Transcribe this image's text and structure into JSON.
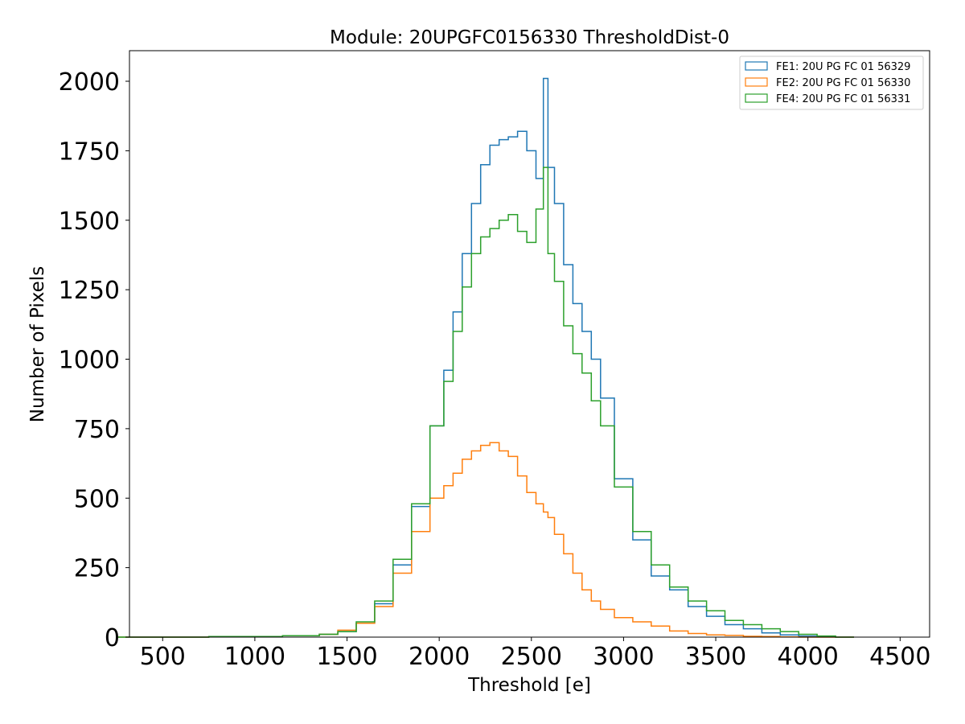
{
  "chart_data": {
    "type": "line",
    "title": "Module: 20UPGFC0156330 ThresholdDist-0",
    "xlabel": "Threshold [e]",
    "ylabel": "Number of Pixels",
    "xlim": [
      320,
      4660
    ],
    "ylim": [
      0,
      2110
    ],
    "x_ticks": [
      500,
      1000,
      1500,
      2000,
      2500,
      3000,
      3500,
      4000,
      4500
    ],
    "y_ticks": [
      0,
      250,
      500,
      750,
      1000,
      1250,
      1500,
      1750,
      2000
    ],
    "grid": false,
    "legend_position": "top-right",
    "x": [
      500,
      1000,
      1300,
      1400,
      1500,
      1600,
      1700,
      1800,
      1900,
      2000,
      2050,
      2100,
      2150,
      2200,
      2250,
      2300,
      2350,
      2400,
      2450,
      2500,
      2550,
      2580,
      2600,
      2650,
      2700,
      2750,
      2800,
      2850,
      2900,
      3000,
      3100,
      3200,
      3300,
      3400,
      3500,
      3600,
      3700,
      3800,
      3900,
      4000,
      4100,
      4200
    ],
    "series": [
      {
        "name": "FE1: 20U PG FC 01 56329",
        "color": "#1f77b4",
        "values": [
          0,
          2,
          5,
          10,
          20,
          50,
          120,
          260,
          470,
          760,
          960,
          1170,
          1380,
          1560,
          1700,
          1770,
          1790,
          1800,
          1820,
          1750,
          1650,
          2010,
          1690,
          1560,
          1340,
          1200,
          1100,
          1000,
          860,
          570,
          350,
          220,
          170,
          110,
          75,
          45,
          30,
          15,
          8,
          4,
          1,
          0
        ]
      },
      {
        "name": "FE2: 20U PG FC 01 56330",
        "color": "#ff7f0e",
        "values": [
          0,
          2,
          5,
          10,
          25,
          50,
          110,
          230,
          380,
          500,
          545,
          590,
          640,
          670,
          690,
          700,
          670,
          650,
          580,
          520,
          480,
          450,
          430,
          370,
          300,
          230,
          170,
          130,
          100,
          70,
          55,
          40,
          22,
          13,
          8,
          6,
          3,
          2,
          1,
          0,
          0,
          0
        ]
      },
      {
        "name": "FE4: 20U PG FC 01 56331",
        "color": "#2ca02c",
        "values": [
          0,
          2,
          5,
          10,
          20,
          55,
          130,
          280,
          480,
          760,
          920,
          1100,
          1260,
          1380,
          1440,
          1470,
          1500,
          1520,
          1460,
          1420,
          1540,
          1690,
          1380,
          1280,
          1120,
          1020,
          950,
          850,
          760,
          540,
          380,
          260,
          180,
          130,
          95,
          60,
          45,
          30,
          20,
          10,
          4,
          0
        ]
      }
    ]
  }
}
